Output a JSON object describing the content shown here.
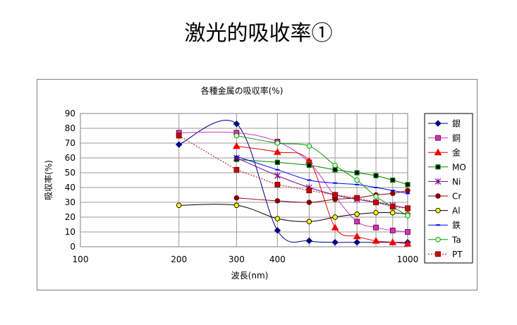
{
  "page": {
    "title": "激光的吸收率①"
  },
  "chart_data": {
    "type": "line",
    "title": "各種金属の吸収率(%)",
    "xlabel": "波長(nm)",
    "ylabel": "吸収率(%)",
    "x_scale": "log",
    "xlim": [
      100,
      1000
    ],
    "ylim": [
      0,
      90
    ],
    "x_ticks": [
      100,
      200,
      300,
      400,
      1000
    ],
    "y_ticks": [
      0,
      10,
      20,
      30,
      40,
      50,
      60,
      70,
      80,
      90
    ],
    "grid": {
      "x": true,
      "y": true
    },
    "legend_position": "right",
    "series": [
      {
        "name": "銀",
        "color": "#000080",
        "marker": "diamond",
        "smooth": true,
        "dash": "",
        "points": [
          [
            200,
            69
          ],
          [
            300,
            83
          ],
          [
            400,
            11
          ],
          [
            500,
            4
          ],
          [
            600,
            3
          ],
          [
            700,
            3
          ],
          [
            1000,
            3
          ]
        ]
      },
      {
        "name": "銅",
        "color": "#cc33cc",
        "marker": "square",
        "smooth": true,
        "dash": "",
        "points": [
          [
            200,
            77
          ],
          [
            300,
            77
          ],
          [
            400,
            71
          ],
          [
            500,
            57
          ],
          [
            600,
            34
          ],
          [
            700,
            17
          ],
          [
            800,
            13
          ],
          [
            900,
            11
          ],
          [
            1000,
            10
          ]
        ]
      },
      {
        "name": "金",
        "color": "#ee0000",
        "marker": "triangle",
        "smooth": true,
        "dash": "",
        "points": [
          [
            300,
            68
          ],
          [
            400,
            64
          ],
          [
            500,
            58
          ],
          [
            600,
            13
          ],
          [
            700,
            7
          ],
          [
            800,
            4
          ],
          [
            900,
            3
          ],
          [
            1000,
            2
          ]
        ]
      },
      {
        "name": "MO",
        "color": "#008000",
        "marker": "filledsquare",
        "smooth": true,
        "dash": "",
        "points": [
          [
            300,
            59
          ],
          [
            400,
            57
          ],
          [
            500,
            55
          ],
          [
            600,
            52
          ],
          [
            700,
            50
          ],
          [
            800,
            48
          ],
          [
            900,
            45
          ],
          [
            1000,
            42
          ]
        ]
      },
      {
        "name": "Ni",
        "color": "#800080",
        "marker": "asterisk",
        "smooth": true,
        "dash": "",
        "points": [
          [
            300,
            60
          ],
          [
            400,
            48
          ],
          [
            500,
            40
          ],
          [
            600,
            35
          ],
          [
            700,
            32
          ],
          [
            800,
            30
          ],
          [
            900,
            28
          ],
          [
            1000,
            26
          ]
        ]
      },
      {
        "name": "Cr",
        "color": "#800000",
        "marker": "circle",
        "smooth": true,
        "dash": "",
        "points": [
          [
            300,
            33
          ],
          [
            400,
            31
          ],
          [
            500,
            30
          ],
          [
            600,
            32
          ],
          [
            700,
            33
          ],
          [
            800,
            35
          ],
          [
            900,
            36
          ],
          [
            1000,
            38
          ]
        ]
      },
      {
        "name": "Al",
        "color": "#000000",
        "fill": "#ffff00",
        "marker": "circle",
        "smooth": true,
        "dash": "",
        "points": [
          [
            200,
            28
          ],
          [
            300,
            28
          ],
          [
            400,
            19
          ],
          [
            500,
            17
          ],
          [
            600,
            20
          ],
          [
            700,
            22
          ],
          [
            800,
            23
          ],
          [
            900,
            23
          ],
          [
            1000,
            22
          ]
        ]
      },
      {
        "name": "鉄",
        "color": "#0000ff",
        "marker": "dash",
        "smooth": true,
        "dash": "",
        "points": [
          [
            300,
            61
          ],
          [
            400,
            52
          ],
          [
            500,
            45
          ],
          [
            600,
            43
          ],
          [
            700,
            42
          ],
          [
            800,
            40
          ],
          [
            900,
            38
          ],
          [
            1000,
            36
          ]
        ]
      },
      {
        "name": "Ta",
        "color": "#009900",
        "fill": "#ccffcc",
        "marker": "circle",
        "smooth": true,
        "dash": "",
        "points": [
          [
            300,
            75
          ],
          [
            400,
            70
          ],
          [
            500,
            68
          ],
          [
            600,
            55
          ],
          [
            700,
            45
          ],
          [
            800,
            34
          ],
          [
            900,
            27
          ],
          [
            1000,
            21
          ]
        ]
      },
      {
        "name": "PT",
        "color": "#cc0000",
        "fill": "#cc0000",
        "marker": "square",
        "smooth": false,
        "dash": "2,2",
        "points": [
          [
            200,
            75
          ],
          [
            300,
            52
          ],
          [
            400,
            42
          ],
          [
            500,
            38
          ],
          [
            600,
            35
          ],
          [
            700,
            33
          ],
          [
            800,
            30
          ],
          [
            900,
            27
          ],
          [
            1000,
            26
          ]
        ]
      }
    ]
  }
}
